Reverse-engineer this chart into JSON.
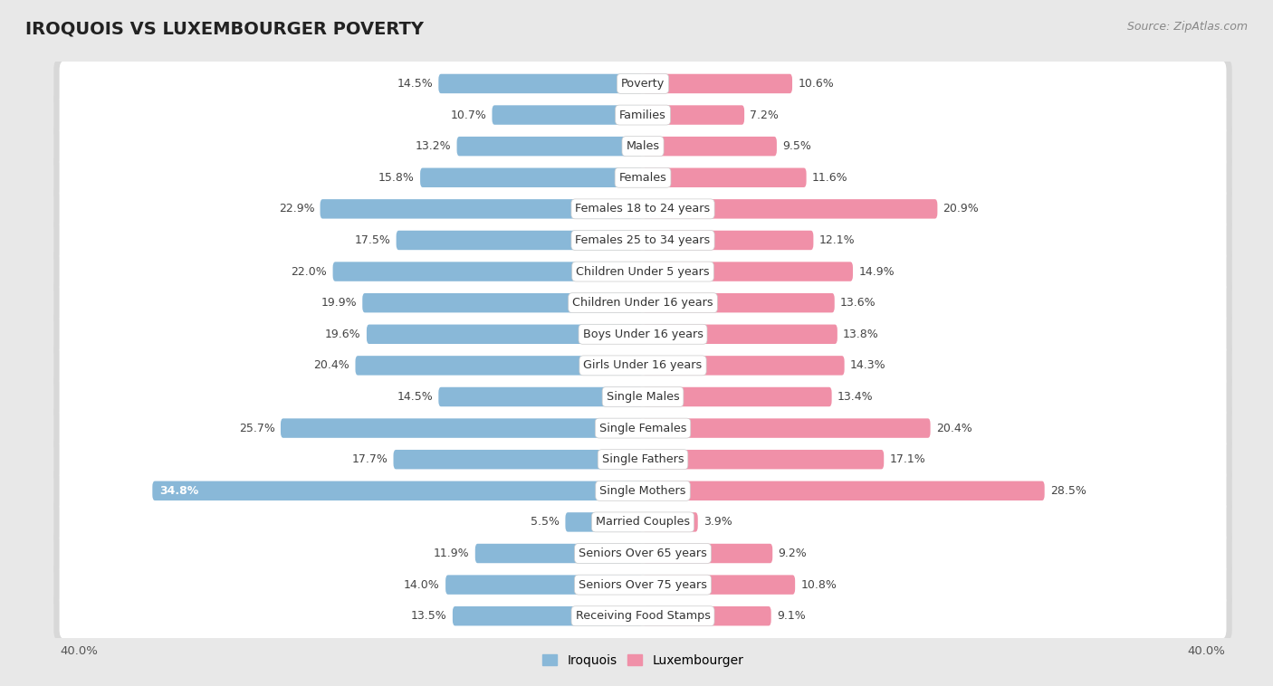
{
  "title": "IROQUOIS VS LUXEMBOURGER POVERTY",
  "source": "Source: ZipAtlas.com",
  "categories": [
    "Poverty",
    "Families",
    "Males",
    "Females",
    "Females 18 to 24 years",
    "Females 25 to 34 years",
    "Children Under 5 years",
    "Children Under 16 years",
    "Boys Under 16 years",
    "Girls Under 16 years",
    "Single Males",
    "Single Females",
    "Single Fathers",
    "Single Mothers",
    "Married Couples",
    "Seniors Over 65 years",
    "Seniors Over 75 years",
    "Receiving Food Stamps"
  ],
  "iroquois": [
    14.5,
    10.7,
    13.2,
    15.8,
    22.9,
    17.5,
    22.0,
    19.9,
    19.6,
    20.4,
    14.5,
    25.7,
    17.7,
    34.8,
    5.5,
    11.9,
    14.0,
    13.5
  ],
  "luxembourger": [
    10.6,
    7.2,
    9.5,
    11.6,
    20.9,
    12.1,
    14.9,
    13.6,
    13.8,
    14.3,
    13.4,
    20.4,
    17.1,
    28.5,
    3.9,
    9.2,
    10.8,
    9.1
  ],
  "iroquois_color": "#89b8d8",
  "luxembourger_color": "#f090a8",
  "axis_limit": 40.0,
  "background_color": "#e8e8e8",
  "row_bg_color": "#ffffff",
  "row_outer_color": "#d8d8d8",
  "bar_height": 0.62,
  "label_fontsize": 9.2,
  "value_fontsize": 9.0,
  "title_fontsize": 14,
  "source_fontsize": 9,
  "legend_fontsize": 10,
  "label_white_threshold": 30.0
}
